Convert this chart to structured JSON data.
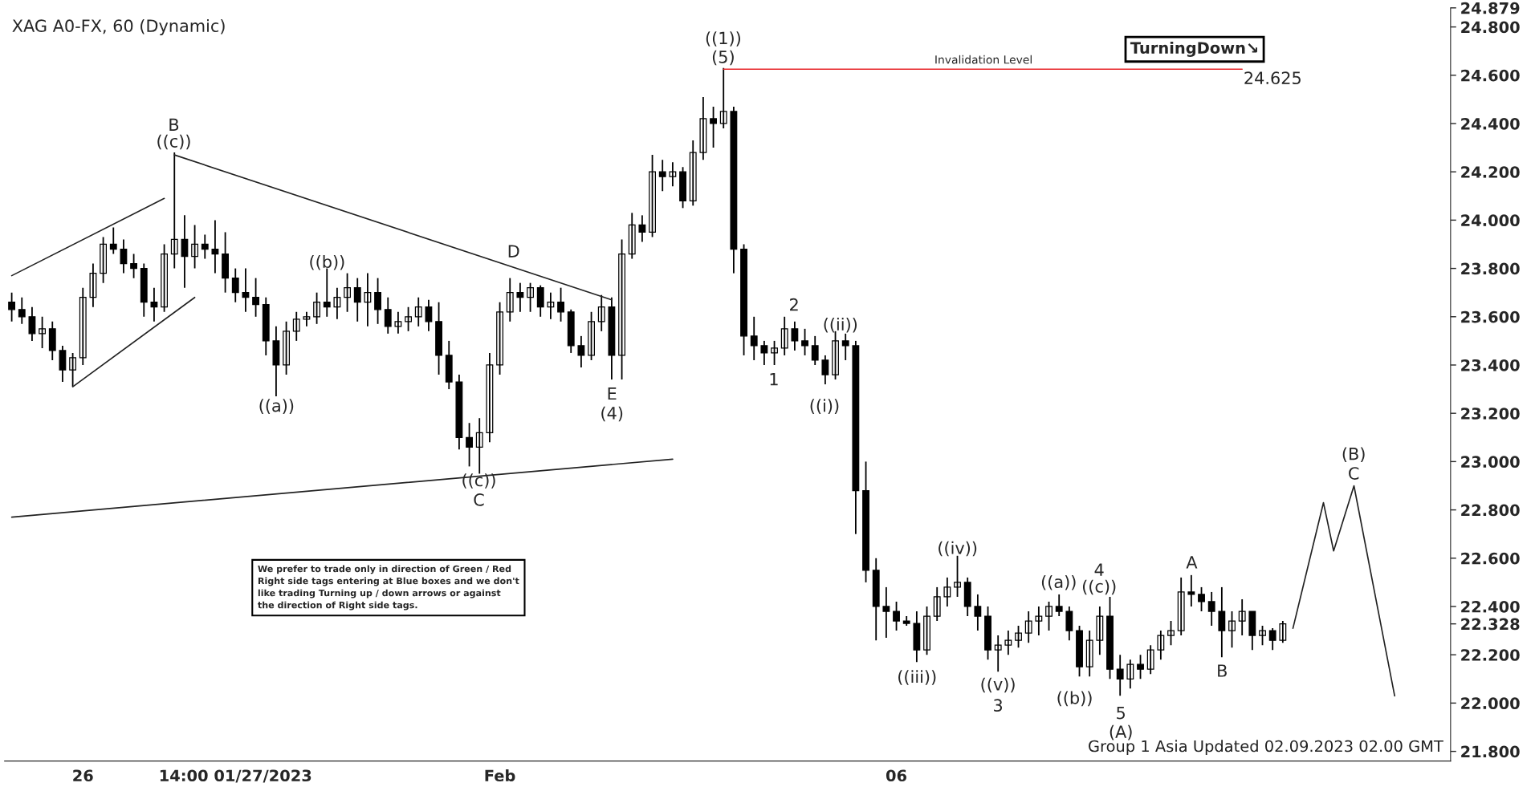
{
  "chart_data": {
    "type": "candlestick",
    "title": "XAG A0-FX, 60 (Dynamic)",
    "categories": [
      null,
      null,
      null,
      null,
      null,
      null,
      null,
      "26",
      null,
      null,
      null,
      null,
      null,
      null,
      null,
      null,
      null,
      null,
      null,
      null,
      null,
      null,
      "14:00 01/27/2023",
      null,
      null,
      null,
      null,
      null,
      null,
      null,
      null,
      null,
      null,
      null,
      null,
      null,
      null,
      null,
      null,
      null,
      null,
      null,
      null,
      null,
      null,
      null,
      null,
      null,
      "Feb",
      null,
      null,
      null,
      null,
      null,
      null,
      null,
      null,
      null,
      null,
      null,
      null,
      null,
      null,
      null,
      null,
      null,
      null,
      null,
      null,
      null,
      null,
      null,
      null,
      null,
      null,
      null,
      null,
      null,
      null,
      null,
      null,
      null,
      null,
      null,
      null,
      null,
      null,
      "06",
      null,
      null,
      null,
      null,
      null,
      null,
      null,
      null,
      null,
      null,
      null,
      null,
      null,
      null,
      null,
      null,
      null,
      null,
      null,
      null,
      null,
      null,
      null,
      null,
      null,
      null,
      null,
      null,
      null,
      null,
      null,
      null,
      null,
      null,
      null,
      null,
      null,
      null,
      null,
      null,
      null,
      null,
      null,
      null,
      null,
      null,
      null,
      null,
      null
    ],
    "ohlc": [
      [
        23.66,
        23.7,
        23.58,
        23.63
      ],
      [
        23.63,
        23.68,
        23.57,
        23.6
      ],
      [
        23.6,
        23.64,
        23.5,
        23.53
      ],
      [
        23.53,
        23.6,
        23.47,
        23.55
      ],
      [
        23.55,
        23.58,
        23.42,
        23.46
      ],
      [
        23.46,
        23.48,
        23.33,
        23.38
      ],
      [
        23.38,
        23.45,
        23.31,
        23.43
      ],
      [
        23.43,
        23.72,
        23.4,
        23.68
      ],
      [
        23.68,
        23.82,
        23.64,
        23.78
      ],
      [
        23.78,
        23.93,
        23.74,
        23.9
      ],
      [
        23.9,
        23.97,
        23.86,
        23.88
      ],
      [
        23.88,
        23.92,
        23.78,
        23.82
      ],
      [
        23.82,
        23.86,
        23.76,
        23.8
      ],
      [
        23.8,
        23.82,
        23.6,
        23.66
      ],
      [
        23.66,
        23.72,
        23.58,
        23.64
      ],
      [
        23.64,
        23.9,
        23.62,
        23.86
      ],
      [
        23.86,
        24.28,
        23.8,
        23.92
      ],
      [
        23.92,
        24.02,
        23.72,
        23.85
      ],
      [
        23.85,
        23.98,
        23.8,
        23.9
      ],
      [
        23.9,
        23.94,
        23.84,
        23.88
      ],
      [
        23.88,
        24.0,
        23.78,
        23.86
      ],
      [
        23.86,
        23.95,
        23.7,
        23.76
      ],
      [
        23.76,
        23.8,
        23.66,
        23.7
      ],
      [
        23.7,
        23.8,
        23.62,
        23.68
      ],
      [
        23.68,
        23.76,
        23.6,
        23.65
      ],
      [
        23.65,
        23.68,
        23.44,
        23.5
      ],
      [
        23.5,
        23.56,
        23.27,
        23.4
      ],
      [
        23.4,
        23.58,
        23.36,
        23.54
      ],
      [
        23.54,
        23.62,
        23.5,
        23.59
      ],
      [
        23.59,
        23.62,
        23.56,
        23.6
      ],
      [
        23.6,
        23.7,
        23.57,
        23.66
      ],
      [
        23.66,
        23.8,
        23.6,
        23.64
      ],
      [
        23.64,
        23.72,
        23.59,
        23.68
      ],
      [
        23.68,
        23.78,
        23.62,
        23.72
      ],
      [
        23.72,
        23.76,
        23.58,
        23.66
      ],
      [
        23.66,
        23.78,
        23.56,
        23.7
      ],
      [
        23.7,
        23.76,
        23.57,
        23.63
      ],
      [
        23.63,
        23.68,
        23.53,
        23.56
      ],
      [
        23.56,
        23.62,
        23.53,
        23.58
      ],
      [
        23.58,
        23.64,
        23.54,
        23.6
      ],
      [
        23.6,
        23.68,
        23.56,
        23.64
      ],
      [
        23.64,
        23.67,
        23.54,
        23.58
      ],
      [
        23.58,
        23.66,
        23.36,
        23.44
      ],
      [
        23.44,
        23.5,
        23.3,
        23.33
      ],
      [
        23.33,
        23.36,
        23.05,
        23.1
      ],
      [
        23.1,
        23.16,
        22.98,
        23.06
      ],
      [
        23.06,
        23.18,
        22.95,
        23.12
      ],
      [
        23.12,
        23.45,
        23.08,
        23.4
      ],
      [
        23.4,
        23.66,
        23.36,
        23.62
      ],
      [
        23.62,
        23.76,
        23.58,
        23.7
      ],
      [
        23.7,
        23.74,
        23.62,
        23.68
      ],
      [
        23.68,
        23.74,
        23.62,
        23.72
      ],
      [
        23.72,
        23.73,
        23.6,
        23.64
      ],
      [
        23.64,
        23.7,
        23.59,
        23.66
      ],
      [
        23.66,
        23.72,
        23.58,
        23.62
      ],
      [
        23.62,
        23.63,
        23.45,
        23.48
      ],
      [
        23.48,
        23.52,
        23.39,
        23.44
      ],
      [
        23.44,
        23.62,
        23.42,
        23.58
      ],
      [
        23.58,
        23.69,
        23.54,
        23.64
      ],
      [
        23.64,
        23.68,
        23.34,
        23.44
      ],
      [
        23.44,
        23.92,
        23.34,
        23.86
      ],
      [
        23.86,
        24.03,
        23.84,
        23.98
      ],
      [
        23.98,
        24.02,
        23.91,
        23.95
      ],
      [
        23.95,
        24.27,
        23.93,
        24.2
      ],
      [
        24.2,
        24.25,
        24.12,
        24.18
      ],
      [
        24.18,
        24.24,
        24.14,
        24.2
      ],
      [
        24.2,
        24.22,
        24.05,
        24.08
      ],
      [
        24.08,
        24.33,
        24.06,
        24.28
      ],
      [
        24.28,
        24.51,
        24.25,
        24.42
      ],
      [
        24.42,
        24.47,
        24.3,
        24.4
      ],
      [
        24.4,
        24.63,
        24.38,
        24.45
      ],
      [
        24.45,
        24.47,
        23.78,
        23.88
      ],
      [
        23.88,
        23.9,
        23.44,
        23.52
      ],
      [
        23.52,
        23.6,
        23.42,
        23.48
      ],
      [
        23.48,
        23.5,
        23.4,
        23.45
      ],
      [
        23.45,
        23.5,
        23.4,
        23.47
      ],
      [
        23.47,
        23.6,
        23.44,
        23.55
      ],
      [
        23.55,
        23.58,
        23.46,
        23.5
      ],
      [
        23.5,
        23.55,
        23.44,
        23.48
      ],
      [
        23.48,
        23.52,
        23.4,
        23.42
      ],
      [
        23.42,
        23.44,
        23.32,
        23.36
      ],
      [
        23.36,
        23.54,
        23.34,
        23.5
      ],
      [
        23.5,
        23.53,
        23.42,
        23.48
      ],
      [
        23.48,
        23.5,
        22.7,
        22.88
      ],
      [
        22.88,
        23.0,
        22.5,
        22.55
      ],
      [
        22.55,
        22.6,
        22.26,
        22.4
      ],
      [
        22.4,
        22.48,
        22.27,
        22.38
      ],
      [
        22.38,
        22.42,
        22.3,
        22.34
      ],
      [
        22.34,
        22.36,
        22.32,
        22.33
      ],
      [
        22.33,
        22.38,
        22.17,
        22.22
      ],
      [
        22.22,
        22.4,
        22.2,
        22.36
      ],
      [
        22.36,
        22.48,
        22.34,
        22.44
      ],
      [
        22.44,
        22.52,
        22.4,
        22.48
      ],
      [
        22.48,
        22.61,
        22.44,
        22.5
      ],
      [
        22.5,
        22.52,
        22.36,
        22.4
      ],
      [
        22.4,
        22.45,
        22.3,
        22.36
      ],
      [
        22.36,
        22.4,
        22.18,
        22.22
      ],
      [
        22.22,
        22.28,
        22.13,
        22.24
      ],
      [
        22.24,
        22.3,
        22.2,
        22.26
      ],
      [
        22.26,
        22.32,
        22.23,
        22.29
      ],
      [
        22.29,
        22.38,
        22.25,
        22.34
      ],
      [
        22.34,
        22.4,
        22.28,
        22.36
      ],
      [
        22.36,
        22.42,
        22.3,
        22.4
      ],
      [
        22.4,
        22.45,
        22.36,
        22.38
      ],
      [
        22.38,
        22.4,
        22.26,
        22.3
      ],
      [
        22.3,
        22.32,
        22.11,
        22.15
      ],
      [
        22.15,
        22.3,
        22.11,
        22.26
      ],
      [
        22.26,
        22.4,
        22.2,
        22.36
      ],
      [
        22.36,
        22.44,
        22.1,
        22.14
      ],
      [
        22.14,
        22.2,
        22.03,
        22.1
      ],
      [
        22.1,
        22.18,
        22.06,
        22.16
      ],
      [
        22.16,
        22.2,
        22.1,
        22.14
      ],
      [
        22.14,
        22.24,
        22.12,
        22.22
      ],
      [
        22.22,
        22.3,
        22.18,
        22.28
      ],
      [
        22.28,
        22.34,
        22.24,
        22.3
      ],
      [
        22.3,
        22.52,
        22.28,
        22.46
      ],
      [
        22.46,
        22.53,
        22.4,
        22.45
      ],
      [
        22.45,
        22.48,
        22.38,
        22.42
      ],
      [
        22.42,
        22.46,
        22.32,
        22.38
      ],
      [
        22.38,
        22.48,
        22.19,
        22.3
      ],
      [
        22.3,
        22.38,
        22.23,
        22.34
      ],
      [
        22.34,
        22.43,
        22.28,
        22.38
      ],
      [
        22.38,
        22.38,
        22.22,
        22.28
      ],
      [
        22.28,
        22.32,
        22.24,
        22.3
      ],
      [
        22.3,
        22.31,
        22.22,
        22.26
      ],
      [
        22.26,
        22.34,
        22.25,
        22.328
      ],
      null,
      null,
      null,
      null,
      null,
      null,
      null,
      null,
      null,
      null,
      null
    ],
    "series": [
      {
        "type": "line",
        "color": "#222222",
        "values": [
          23.77,
          null,
          null,
          null,
          null,
          null,
          null,
          null,
          null,
          null,
          null,
          null,
          null,
          null,
          null,
          24.09,
          null,
          null,
          null,
          null,
          null,
          null,
          null,
          null,
          null,
          null,
          null,
          null,
          null,
          null,
          null,
          null,
          null,
          null,
          null,
          null,
          null,
          null,
          null,
          null,
          null,
          null,
          null,
          null,
          null,
          null,
          null,
          null,
          null,
          null,
          null,
          null,
          null,
          null,
          null,
          null,
          null,
          null,
          null,
          null,
          null,
          null,
          null,
          null,
          null,
          null,
          null,
          null,
          null,
          null,
          null,
          null,
          null,
          null,
          null,
          null,
          null,
          null,
          null,
          null,
          null,
          null,
          null,
          null,
          null,
          null,
          null,
          null,
          null,
          null,
          null,
          null,
          null,
          null,
          null,
          null,
          null,
          null,
          null,
          null,
          null,
          null,
          null,
          null,
          null,
          null,
          null,
          null,
          null,
          null,
          null,
          null,
          null,
          null,
          null,
          null,
          null,
          null,
          null,
          null,
          null,
          null,
          null,
          null,
          null,
          null,
          null,
          null,
          null,
          null,
          null,
          null,
          null,
          null,
          null,
          null,
          null
        ]
      },
      {
        "type": "line",
        "color": "#222222",
        "values": [
          null,
          null,
          null,
          null,
          null,
          null,
          23.31,
          null,
          null,
          null,
          null,
          null,
          null,
          null,
          null,
          null,
          null,
          null,
          23.68,
          null,
          null,
          null,
          null,
          null,
          null,
          null,
          null,
          null,
          null,
          null,
          null,
          null,
          null,
          null,
          null,
          null,
          null,
          null,
          null,
          null,
          null,
          null,
          null,
          null,
          null,
          null,
          null,
          null,
          null,
          null,
          null,
          null,
          null,
          null,
          null,
          null,
          null,
          null,
          null,
          null,
          null,
          null,
          null,
          null,
          null,
          null,
          null,
          null,
          null,
          null,
          null,
          null,
          null,
          null,
          null,
          null,
          null,
          null,
          null,
          null,
          null,
          null,
          null,
          null,
          null,
          null,
          null,
          null,
          null,
          null,
          null,
          null,
          null,
          null,
          null,
          null,
          null,
          null,
          null,
          null,
          null,
          null,
          null,
          null,
          null,
          null,
          null,
          null,
          null,
          null,
          null,
          null,
          null,
          null,
          null,
          null,
          null,
          null,
          null,
          null,
          null,
          null,
          null,
          null,
          null,
          null,
          null,
          null,
          null,
          null,
          null,
          null,
          null,
          null,
          null,
          null,
          null
        ]
      },
      {
        "type": "line",
        "color": "#222222",
        "values": [
          null,
          null,
          null,
          null,
          null,
          null,
          null,
          null,
          null,
          null,
          null,
          null,
          null,
          null,
          null,
          null,
          24.27,
          null,
          null,
          null,
          null,
          null,
          null,
          null,
          null,
          null,
          null,
          null,
          null,
          null,
          null,
          null,
          null,
          null,
          null,
          null,
          null,
          null,
          null,
          null,
          null,
          null,
          null,
          null,
          null,
          null,
          null,
          null,
          null,
          null,
          null,
          null,
          null,
          null,
          null,
          null,
          null,
          null,
          null,
          23.67,
          null,
          null,
          null,
          null,
          null,
          null,
          null,
          null,
          null,
          null,
          null,
          null,
          null,
          null,
          null,
          null,
          null,
          null,
          null,
          null,
          null,
          null,
          null,
          null,
          null,
          null,
          null,
          null,
          null,
          null,
          null,
          null,
          null,
          null,
          null,
          null,
          null,
          null,
          null,
          null,
          null,
          null,
          null,
          null,
          null,
          null,
          null,
          null,
          null,
          null,
          null,
          null,
          null,
          null,
          null,
          null,
          null,
          null,
          null,
          null,
          null,
          null,
          null,
          null,
          null,
          null,
          null,
          null,
          null,
          null,
          null,
          null,
          null,
          null,
          null,
          null,
          null
        ]
      },
      {
        "type": "line",
        "color": "#222222",
        "values": [
          22.77,
          null,
          null,
          null,
          null,
          null,
          null,
          null,
          null,
          null,
          null,
          null,
          null,
          null,
          null,
          null,
          null,
          null,
          null,
          null,
          null,
          null,
          null,
          null,
          null,
          null,
          null,
          null,
          null,
          null,
          null,
          null,
          null,
          null,
          null,
          null,
          null,
          null,
          null,
          null,
          null,
          null,
          null,
          null,
          null,
          null,
          null,
          null,
          null,
          null,
          null,
          null,
          null,
          null,
          null,
          null,
          null,
          null,
          null,
          null,
          null,
          null,
          null,
          null,
          null,
          23.01,
          null,
          null,
          null,
          null,
          null,
          null,
          null,
          null,
          null,
          null,
          null,
          null,
          null,
          null,
          null,
          null,
          null,
          null,
          null,
          null,
          null,
          null,
          null,
          null,
          null,
          null,
          null,
          null,
          null,
          null,
          null,
          null,
          null,
          null,
          null,
          null,
          null,
          null,
          null,
          null,
          null,
          null,
          null,
          null,
          null,
          null,
          null,
          null,
          null,
          null,
          null,
          null,
          null,
          null,
          null,
          null,
          null,
          null,
          null,
          null,
          null,
          null,
          null,
          null,
          null,
          null,
          null,
          null,
          null,
          null,
          null
        ]
      },
      {
        "type": "line",
        "color": "#e8262a",
        "values": [
          null,
          null,
          null,
          null,
          null,
          null,
          null,
          null,
          null,
          null,
          null,
          null,
          null,
          null,
          null,
          null,
          null,
          null,
          null,
          null,
          null,
          null,
          null,
          null,
          null,
          null,
          null,
          null,
          null,
          null,
          null,
          null,
          null,
          null,
          null,
          null,
          null,
          null,
          null,
          null,
          null,
          null,
          null,
          null,
          null,
          null,
          null,
          null,
          null,
          null,
          null,
          null,
          null,
          null,
          null,
          null,
          null,
          null,
          null,
          null,
          null,
          null,
          null,
          null,
          null,
          null,
          null,
          null,
          null,
          null,
          24.625,
          null,
          null,
          null,
          null,
          null,
          null,
          null,
          null,
          null,
          null,
          null,
          null,
          null,
          null,
          null,
          null,
          null,
          null,
          null,
          null,
          null,
          null,
          null,
          null,
          null,
          null,
          null,
          null,
          null,
          null,
          null,
          null,
          null,
          null,
          null,
          null,
          null,
          null,
          null,
          null,
          null,
          null,
          null,
          null,
          null,
          null,
          null,
          null,
          null,
          null,
          24.625,
          null,
          null,
          null,
          null,
          null,
          null,
          null,
          null,
          null,
          null,
          null,
          null,
          null,
          null,
          null
        ]
      },
      {
        "type": "line",
        "color": "#222222",
        "values": [
          null,
          null,
          null,
          null,
          null,
          null,
          null,
          null,
          null,
          null,
          null,
          null,
          null,
          null,
          null,
          null,
          null,
          null,
          null,
          null,
          null,
          null,
          null,
          null,
          null,
          null,
          null,
          null,
          null,
          null,
          null,
          null,
          null,
          null,
          null,
          null,
          null,
          null,
          null,
          null,
          null,
          null,
          null,
          null,
          null,
          null,
          null,
          null,
          null,
          null,
          null,
          null,
          null,
          null,
          null,
          null,
          null,
          null,
          null,
          null,
          null,
          null,
          null,
          null,
          null,
          null,
          null,
          null,
          null,
          null,
          null,
          null,
          null,
          null,
          null,
          null,
          null,
          null,
          null,
          null,
          null,
          null,
          null,
          null,
          null,
          null,
          null,
          null,
          null,
          null,
          null,
          null,
          null,
          null,
          null,
          null,
          null,
          null,
          null,
          null,
          null,
          null,
          null,
          null,
          null,
          null,
          null,
          null,
          null,
          null,
          null,
          null,
          null,
          null,
          null,
          null,
          null,
          null,
          null,
          null,
          null,
          null,
          null,
          null,
          null,
          null,
          22.31,
          null,
          null,
          22.83,
          22.63,
          null,
          22.9,
          null,
          null,
          null,
          22.03
        ]
      }
    ],
    "ylim": [
      21.76,
      24.879
    ],
    "yticks": [
      {
        "value": 21.8,
        "label": "21.800"
      },
      {
        "value": 22.0,
        "label": "22.000"
      },
      {
        "value": 22.2,
        "label": "22.200"
      },
      {
        "value": 22.328,
        "label": "22.328"
      },
      {
        "value": 22.4,
        "label": "22.400"
      },
      {
        "value": 22.6,
        "label": "22.600"
      },
      {
        "value": 22.8,
        "label": "22.800"
      },
      {
        "value": 23.0,
        "label": "23.000"
      },
      {
        "value": 23.2,
        "label": "23.200"
      },
      {
        "value": 23.4,
        "label": "23.400"
      },
      {
        "value": 23.6,
        "label": "23.600"
      },
      {
        "value": 23.8,
        "label": "23.800"
      },
      {
        "value": 24.0,
        "label": "24.000"
      },
      {
        "value": 24.2,
        "label": "24.200"
      },
      {
        "value": 24.4,
        "label": "24.400"
      },
      {
        "value": 24.6,
        "label": "24.600"
      },
      {
        "value": 24.8,
        "label": "24.800"
      },
      {
        "value": 24.879,
        "label": "24.879"
      }
    ],
    "grid": false,
    "annotations": [
      "TurningDown↘",
      "We prefer to trade only in direction of Green / Red\nRight side tags entering at Blue boxes and we don't\nlike trading Turning up / down arrows or against\nthe direction of Right side tags.",
      "Group 1 Asia Updated 02.09.2023 02.00 GMT",
      "B",
      "((c))",
      "((b))",
      "((a))",
      "D",
      "((c))",
      "C",
      "E",
      "(4)",
      "((1))",
      "(5)",
      "1",
      "2",
      "((ii))",
      "((i))",
      "((iii))",
      "((iv))",
      "((v))",
      "3",
      "((a))",
      "((b))",
      "4",
      "((c))",
      "5",
      "(A)",
      "A",
      "B",
      "(B)",
      "C",
      "Invalidation Level",
      "24.625"
    ]
  }
}
